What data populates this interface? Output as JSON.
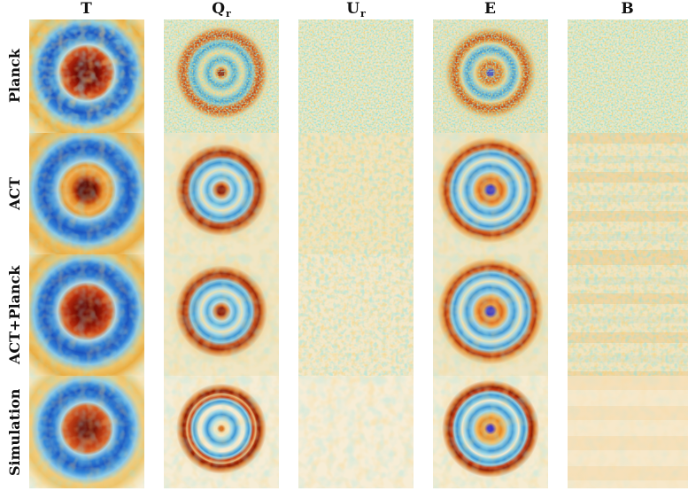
{
  "figure": {
    "columns": [
      {
        "id": "T",
        "label": "T",
        "subscript": ""
      },
      {
        "id": "Qr",
        "label": "Q",
        "subscript": "r"
      },
      {
        "id": "Ur",
        "label": "U",
        "subscript": "r"
      },
      {
        "id": "E",
        "label": "E",
        "subscript": ""
      },
      {
        "id": "B",
        "label": "B",
        "subscript": ""
      }
    ],
    "rows": [
      {
        "id": "planck",
        "label": "Planck"
      },
      {
        "id": "act",
        "label": "ACT"
      },
      {
        "id": "actplanck",
        "label": "ACT+Planck"
      },
      {
        "id": "sim",
        "label": "Simulation"
      }
    ],
    "panels": [
      {
        "row": "planck",
        "col": "T",
        "pattern": "t-planck",
        "content": "stacked rings: dark-red core, blue annulus, yellow halo",
        "noise_grain": "blob",
        "noise_strength": "medium"
      },
      {
        "row": "planck",
        "col": "Qr",
        "pattern": "qr-planck",
        "content": "bullseye: red dot, two blue rings, strong orange outer ring",
        "noise_grain": "fine",
        "noise_strength": "strong"
      },
      {
        "row": "planck",
        "col": "Ur",
        "pattern": "ur-planck",
        "content": "noise only",
        "noise_grain": "fine",
        "noise_strength": "strong"
      },
      {
        "row": "planck",
        "col": "E",
        "pattern": "e-planck",
        "content": "bullseye: blue dot, orange annulus, blue ring, orange outer ring",
        "noise_grain": "fine",
        "noise_strength": "strong"
      },
      {
        "row": "planck",
        "col": "B",
        "pattern": "b-planck",
        "content": "noise only",
        "noise_grain": "fine",
        "noise_strength": "strong"
      },
      {
        "row": "act",
        "col": "T",
        "pattern": "t-act",
        "content": "stacked rings: dark core, bright orange annulus, blue annulus, orange halo",
        "noise_grain": "blob",
        "noise_strength": "light"
      },
      {
        "row": "act",
        "col": "Qr",
        "pattern": "qr-act",
        "content": "bullseye: red dot, blue rings, dark-red outer ring",
        "noise_grain": "blob",
        "noise_strength": "light"
      },
      {
        "row": "act",
        "col": "Ur",
        "pattern": "ur-act",
        "content": "noise only",
        "noise_grain": "medium",
        "noise_strength": "medium"
      },
      {
        "row": "act",
        "col": "E",
        "pattern": "e-act",
        "content": "bullseye: blue dot, orange disk, double blue ring, orange outer ring",
        "noise_grain": "blob",
        "noise_strength": "light"
      },
      {
        "row": "act",
        "col": "B",
        "pattern": "b-act",
        "content": "noise with faint horizontal orange banding",
        "noise_grain": "medium",
        "noise_strength": "medium"
      },
      {
        "row": "actplanck",
        "col": "T",
        "pattern": "t-actplanck",
        "content": "stacked rings: red core, blue annulus, yellow halo",
        "noise_grain": "blob",
        "noise_strength": "light"
      },
      {
        "row": "actplanck",
        "col": "Qr",
        "pattern": "qr-actplanck",
        "content": "bullseye: red dot, blue rings, dark-red outer ring",
        "noise_grain": "blob",
        "noise_strength": "light"
      },
      {
        "row": "actplanck",
        "col": "Ur",
        "pattern": "ur-actplanck",
        "content": "noise only",
        "noise_grain": "medium",
        "noise_strength": "medium"
      },
      {
        "row": "actplanck",
        "col": "E",
        "pattern": "e-actplanck",
        "content": "bullseye: blue dot, orange disk, double blue ring, orange outer ring",
        "noise_grain": "blob",
        "noise_strength": "light"
      },
      {
        "row": "actplanck",
        "col": "B",
        "pattern": "b-actplanck",
        "content": "noise with faint horizontal orange banding",
        "noise_grain": "medium",
        "noise_strength": "medium"
      },
      {
        "row": "sim",
        "col": "T",
        "pattern": "t-sim",
        "content": "stacked rings: red core, blue annulus, faint yellow halo",
        "noise_grain": "blob",
        "noise_strength": "light"
      },
      {
        "row": "sim",
        "col": "Qr",
        "pattern": "qr-sim",
        "content": "crisp bullseye: orange dot, thin blue rings, dark-red outer ring",
        "noise_grain": "blob",
        "noise_strength": "light"
      },
      {
        "row": "sim",
        "col": "Ur",
        "pattern": "ur-sim",
        "content": "very faint noise",
        "noise_grain": "blob",
        "noise_strength": "light"
      },
      {
        "row": "sim",
        "col": "E",
        "pattern": "e-sim",
        "content": "crisp bullseye: blue dot, orange disk, blue rings, dark-red outer ring",
        "noise_grain": "blob",
        "noise_strength": "light"
      },
      {
        "row": "sim",
        "col": "B",
        "pattern": "b-sim",
        "content": "nearly uniform, faint horizontal bands",
        "noise_grain": "blob",
        "noise_strength": "minimal"
      }
    ],
    "colors": {
      "background_cream": "#f4ecd4",
      "deep_red": "#8a1606",
      "red": "#c43c14",
      "orange": "#e8932f",
      "blue": "#2e7fd4",
      "dark_blue": "#1b55c0",
      "light_blue": "#8cc8e4",
      "noise_teal": "#43c2bd",
      "noise_orange": "#ed9e28",
      "center_dot_blue": "#3b36c4",
      "label_text": "#111111"
    }
  }
}
